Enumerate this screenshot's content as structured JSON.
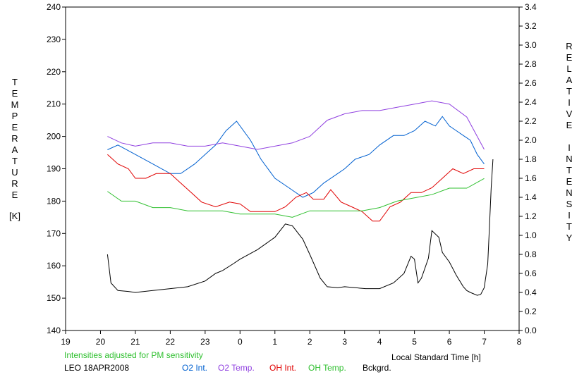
{
  "chart_data": {
    "type": "line",
    "left_axis": {
      "label_letters": [
        "T",
        "E",
        "M",
        "P",
        "E",
        "R",
        "A",
        "T",
        "U",
        "R",
        "E"
      ],
      "unit": "[K]",
      "ylim": [
        140,
        240
      ],
      "ticks": [
        "140",
        "150",
        "160",
        "170",
        "180",
        "190",
        "200",
        "210",
        "220",
        "230",
        "240"
      ]
    },
    "right_axis": {
      "label_word1": [
        "R",
        "E",
        "L",
        "A",
        "T",
        "I",
        "V",
        "E"
      ],
      "label_word2": [
        "I",
        "N",
        "T",
        "E",
        "N",
        "S",
        "I",
        "T",
        "Y"
      ],
      "ylim": [
        0.0,
        3.4
      ],
      "ticks": [
        "0.0",
        "0.2",
        "0.4",
        "0.6",
        "0.8",
        "1.0",
        "1.2",
        "1.4",
        "1.6",
        "1.8",
        "2.0",
        "2.2",
        "2.4",
        "2.6",
        "2.8",
        "3.0",
        "3.2",
        "3.4"
      ]
    },
    "x_axis": {
      "xlabel": "Local Standard Time [h]",
      "ticks": [
        "19",
        "20",
        "21",
        "22",
        "23",
        "0",
        "1",
        "2",
        "3",
        "4",
        "5",
        "6",
        "7",
        "8"
      ]
    },
    "note": "Intensities adjusted for PM sensitivity",
    "station": "LEO 18APR2008",
    "grid": false,
    "series": [
      {
        "name": "O2 Int.",
        "color": "#0060d0",
        "axis": "right",
        "x": [
          20.2,
          20.5,
          21.0,
          21.5,
          22.0,
          22.3,
          22.7,
          23.0,
          23.3,
          23.6,
          23.9,
          24.3,
          24.6,
          25.0,
          25.4,
          25.8,
          26.1,
          26.4,
          26.8,
          27.0,
          27.3,
          27.7,
          28.0,
          28.4,
          28.7,
          29.0,
          29.3,
          29.6,
          29.8,
          30.0,
          30.2,
          30.4,
          30.6,
          30.8,
          31.0
        ],
        "values": [
          1.9,
          1.95,
          1.85,
          1.75,
          1.65,
          1.65,
          1.75,
          1.85,
          1.95,
          2.1,
          2.2,
          2.0,
          1.8,
          1.6,
          1.5,
          1.4,
          1.45,
          1.55,
          1.65,
          1.7,
          1.8,
          1.85,
          1.95,
          2.05,
          2.05,
          2.1,
          2.2,
          2.15,
          2.25,
          2.15,
          2.1,
          2.05,
          2.0,
          1.85,
          1.75
        ]
      },
      {
        "name": "O2 Temp.",
        "color": "#9040e0",
        "axis": "left",
        "x": [
          20.2,
          20.6,
          21.0,
          21.5,
          22.0,
          22.5,
          23.0,
          23.5,
          24.0,
          24.5,
          25.0,
          25.5,
          26.0,
          26.5,
          27.0,
          27.5,
          28.0,
          28.5,
          29.0,
          29.5,
          30.0,
          30.5,
          31.0
        ],
        "values": [
          200,
          198,
          197,
          198,
          198,
          197,
          197,
          198,
          197,
          196,
          197,
          198,
          200,
          205,
          207,
          208,
          208,
          209,
          210,
          211,
          210,
          206,
          196
        ]
      },
      {
        "name": "OH Int.",
        "color": "#e00000",
        "axis": "right",
        "x": [
          20.2,
          20.5,
          20.8,
          21.0,
          21.3,
          21.6,
          22.0,
          22.3,
          22.6,
          22.9,
          23.3,
          23.7,
          24.0,
          24.3,
          24.7,
          25.0,
          25.3,
          25.6,
          25.9,
          26.1,
          26.4,
          26.6,
          26.9,
          27.2,
          27.5,
          27.8,
          28.0,
          28.3,
          28.6,
          28.9,
          29.2,
          29.5,
          29.8,
          30.1,
          30.4,
          30.7,
          31.0
        ],
        "values": [
          1.85,
          1.75,
          1.7,
          1.6,
          1.6,
          1.65,
          1.65,
          1.55,
          1.45,
          1.35,
          1.3,
          1.35,
          1.33,
          1.25,
          1.25,
          1.25,
          1.3,
          1.4,
          1.45,
          1.38,
          1.38,
          1.48,
          1.35,
          1.3,
          1.25,
          1.15,
          1.15,
          1.3,
          1.35,
          1.45,
          1.45,
          1.5,
          1.6,
          1.7,
          1.65,
          1.7,
          1.7
        ]
      },
      {
        "name": "OH Temp.",
        "color": "#30c030",
        "axis": "left",
        "x": [
          20.2,
          20.6,
          21.0,
          21.5,
          22.0,
          22.5,
          23.0,
          23.5,
          24.0,
          24.5,
          25.0,
          25.5,
          26.0,
          26.5,
          27.0,
          27.5,
          28.0,
          28.5,
          29.0,
          29.5,
          30.0,
          30.5,
          31.0
        ],
        "values": [
          183,
          180,
          180,
          178,
          178,
          177,
          177,
          177,
          176,
          176,
          176,
          175,
          177,
          177,
          177,
          177,
          178,
          180,
          181,
          182,
          184,
          184,
          187
        ]
      },
      {
        "name": "Bckgrd.",
        "color": "#000000",
        "axis": "right",
        "x": [
          20.2,
          20.3,
          20.5,
          20.8,
          21.0,
          21.5,
          22.0,
          22.5,
          23.0,
          23.3,
          23.5,
          23.8,
          24.0,
          24.5,
          25.0,
          25.3,
          25.5,
          25.8,
          26.0,
          26.3,
          26.5,
          26.8,
          27.0,
          27.3,
          27.6,
          28.0,
          28.4,
          28.7,
          28.9,
          29.0,
          29.1,
          29.2,
          29.4,
          29.5,
          29.7,
          29.8,
          30.0,
          30.2,
          30.4,
          30.5,
          30.6,
          30.8,
          30.9,
          31.0,
          31.1,
          31.15,
          31.2,
          31.25
        ],
        "values": [
          0.8,
          0.5,
          0.42,
          0.41,
          0.4,
          0.42,
          0.44,
          0.46,
          0.52,
          0.6,
          0.63,
          0.7,
          0.75,
          0.85,
          0.98,
          1.12,
          1.1,
          0.96,
          0.8,
          0.55,
          0.46,
          0.45,
          0.46,
          0.45,
          0.44,
          0.44,
          0.5,
          0.6,
          0.78,
          0.75,
          0.5,
          0.55,
          0.76,
          1.05,
          0.98,
          0.82,
          0.72,
          0.58,
          0.46,
          0.42,
          0.4,
          0.37,
          0.38,
          0.45,
          0.7,
          1.1,
          1.5,
          1.8
        ]
      }
    ]
  }
}
